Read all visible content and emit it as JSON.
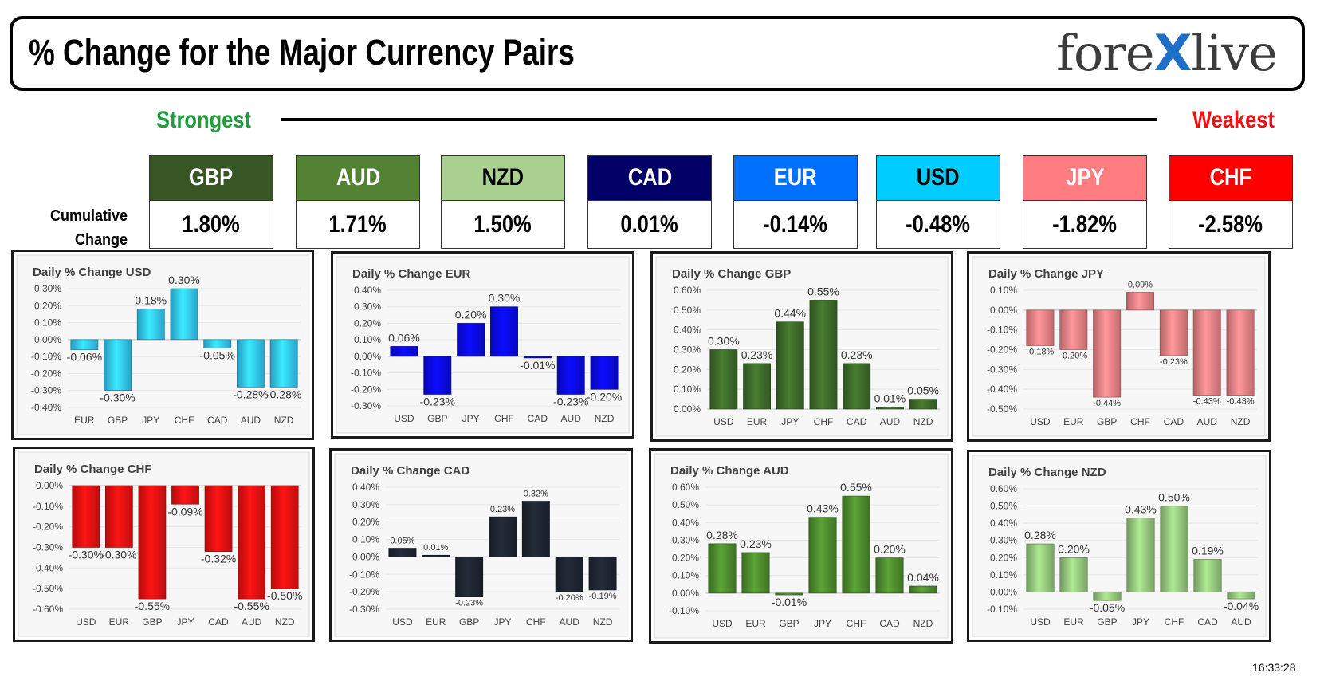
{
  "title": "% Change for the Major Currency Pairs",
  "logo": {
    "part1": "fore",
    "part2": "X",
    "part3": "live"
  },
  "strongest_label": "Strongest",
  "weakest_label": "Weakest",
  "cumulative_label_line1": "Cumulative",
  "cumulative_label_line2": "Change",
  "timestamp": "16:33:28",
  "colors": {
    "strongest": "#1e9e3c",
    "weakest": "#ee1111",
    "logo_x": "#1e6fc6"
  },
  "currencies": [
    {
      "code": "GBP",
      "value": "1.80%",
      "bg": "#375623",
      "fg": "#ffffff"
    },
    {
      "code": "AUD",
      "value": "1.71%",
      "bg": "#548235",
      "fg": "#ffffff"
    },
    {
      "code": "NZD",
      "value": "1.50%",
      "bg": "#a9d08e",
      "fg": "#000000"
    },
    {
      "code": "CAD",
      "value": "0.01%",
      "bg": "#000066",
      "fg": "#ffffff"
    },
    {
      "code": "EUR",
      "value": "-0.14%",
      "bg": "#0070ff",
      "fg": "#ffffff"
    },
    {
      "code": "USD",
      "value": "-0.48%",
      "bg": "#00ccff",
      "fg": "#000000"
    },
    {
      "code": "JPY",
      "value": "-1.82%",
      "bg": "#ff7c80",
      "fg": "#ffffff"
    },
    {
      "code": "CHF",
      "value": "-2.58%",
      "bg": "#ff0000",
      "fg": "#ffffff"
    }
  ],
  "chart_data": [
    {
      "type": "bar",
      "title": "Daily % Change USD",
      "categories": [
        "EUR",
        "GBP",
        "JPY",
        "CHF",
        "CAD",
        "AUD",
        "NZD"
      ],
      "values": [
        -0.06,
        -0.3,
        0.18,
        0.3,
        -0.05,
        -0.28,
        -0.28
      ],
      "labels": [
        "-0.06%",
        "-0.30%",
        "0.18%",
        "0.30%",
        "-0.05%",
        "-0.28%",
        "-0.28%"
      ],
      "yticks": [
        "0.30%",
        "0.20%",
        "0.10%",
        "0.00%",
        "-0.10%",
        "-0.20%",
        "-0.30%",
        "-0.40%"
      ],
      "ylim": [
        -0.4,
        0.3
      ],
      "color": "#33ccff"
    },
    {
      "type": "bar",
      "title": "Daily % Change EUR",
      "categories": [
        "USD",
        "GBP",
        "JPY",
        "CHF",
        "CAD",
        "AUD",
        "NZD"
      ],
      "values": [
        0.06,
        -0.23,
        0.2,
        0.3,
        -0.01,
        -0.23,
        -0.2
      ],
      "labels": [
        "0.06%",
        "-0.23%",
        "0.20%",
        "0.30%",
        "-0.01%",
        "-0.23%",
        "-0.20%"
      ],
      "yticks": [
        "0.40%",
        "0.30%",
        "0.20%",
        "0.10%",
        "0.00%",
        "-0.10%",
        "-0.20%",
        "-0.30%"
      ],
      "ylim": [
        -0.3,
        0.4
      ],
      "color": "#0a0aee"
    },
    {
      "type": "bar",
      "title": "Daily % Change GBP",
      "categories": [
        "USD",
        "EUR",
        "JPY",
        "CHF",
        "CAD",
        "AUD",
        "NZD"
      ],
      "values": [
        0.3,
        0.23,
        0.44,
        0.55,
        0.23,
        0.01,
        0.05
      ],
      "labels": [
        "0.30%",
        "0.23%",
        "0.44%",
        "0.55%",
        "0.23%",
        "0.01%",
        "0.05%"
      ],
      "yticks": [
        "0.60%",
        "0.50%",
        "0.40%",
        "0.30%",
        "0.20%",
        "0.10%",
        "0.00%"
      ],
      "ylim": [
        0,
        0.6
      ],
      "color": "#3f6d2a"
    },
    {
      "type": "bar",
      "title": "Daily % Change JPY",
      "categories": [
        "USD",
        "EUR",
        "GBP",
        "CHF",
        "CAD",
        "AUD",
        "NZD"
      ],
      "values": [
        -0.18,
        -0.2,
        -0.44,
        0.09,
        -0.23,
        -0.43,
        -0.43
      ],
      "labels": [
        "-0.18%",
        "-0.20%",
        "-0.44%",
        "0.09%",
        "-0.23%",
        "-0.43%",
        "-0.43%"
      ],
      "yticks": [
        "0.10%",
        "0.00%",
        "-0.10%",
        "-0.20%",
        "-0.30%",
        "-0.40%",
        "-0.50%"
      ],
      "ylim": [
        -0.5,
        0.1
      ],
      "color": "#f28488"
    },
    {
      "type": "bar",
      "title": "Daily % Change CHF",
      "categories": [
        "USD",
        "EUR",
        "GBP",
        "JPY",
        "CAD",
        "AUD",
        "NZD"
      ],
      "values": [
        -0.3,
        -0.3,
        -0.55,
        -0.09,
        -0.32,
        -0.55,
        -0.5
      ],
      "labels": [
        "-0.30%",
        "-0.30%",
        "-0.55%",
        "-0.09%",
        "-0.32%",
        "-0.55%",
        "-0.50%"
      ],
      "yticks": [
        "0.00%",
        "-0.10%",
        "-0.20%",
        "-0.30%",
        "-0.40%",
        "-0.50%",
        "-0.60%"
      ],
      "ylim": [
        -0.6,
        0
      ],
      "color": "#ee1111"
    },
    {
      "type": "bar",
      "title": "Daily % Change CAD",
      "categories": [
        "USD",
        "EUR",
        "GBP",
        "JPY",
        "CHF",
        "AUD",
        "NZD"
      ],
      "values": [
        0.05,
        0.01,
        -0.23,
        0.23,
        0.32,
        -0.2,
        -0.19
      ],
      "labels": [
        "0.05%",
        "0.01%",
        "-0.23%",
        "0.23%",
        "0.32%",
        "-0.20%",
        "-0.19%"
      ],
      "yticks": [
        "0.40%",
        "0.30%",
        "0.20%",
        "0.10%",
        "0.00%",
        "-0.10%",
        "-0.20%",
        "-0.30%"
      ],
      "ylim": [
        -0.3,
        0.4
      ],
      "color": "#1e2632"
    },
    {
      "type": "bar",
      "title": "Daily % Change AUD",
      "categories": [
        "USD",
        "EUR",
        "GBP",
        "JPY",
        "CHF",
        "CAD",
        "NZD"
      ],
      "values": [
        0.28,
        0.23,
        -0.01,
        0.43,
        0.55,
        0.2,
        0.04
      ],
      "labels": [
        "0.28%",
        "0.23%",
        "-0.01%",
        "0.43%",
        "0.55%",
        "0.20%",
        "0.04%"
      ],
      "yticks": [
        "0.60%",
        "0.50%",
        "0.40%",
        "0.30%",
        "0.20%",
        "0.10%",
        "0.00%",
        "-0.10%"
      ],
      "ylim": [
        -0.1,
        0.6
      ],
      "color": "#4f8f2e"
    },
    {
      "type": "bar",
      "title": "Daily % Change NZD",
      "categories": [
        "USD",
        "EUR",
        "GBP",
        "JPY",
        "CHF",
        "CAD",
        "AUD"
      ],
      "values": [
        0.28,
        0.2,
        -0.05,
        0.43,
        0.5,
        0.19,
        -0.04
      ],
      "labels": [
        "0.28%",
        "0.20%",
        "-0.05%",
        "0.43%",
        "0.50%",
        "0.19%",
        "-0.04%"
      ],
      "yticks": [
        "0.60%",
        "0.50%",
        "0.40%",
        "0.30%",
        "0.20%",
        "0.10%",
        "0.00%",
        "-0.10%"
      ],
      "ylim": [
        -0.1,
        0.6
      ],
      "color": "#98cc80"
    }
  ]
}
